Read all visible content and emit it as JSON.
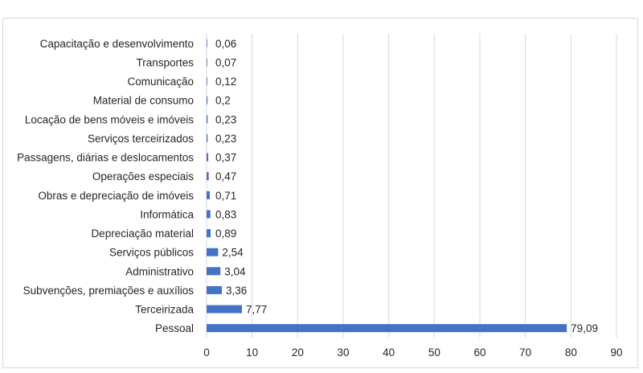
{
  "chart_data": {
    "type": "bar",
    "orientation": "horizontal",
    "categories": [
      "Capacitação e desenvolvimento",
      "Transportes",
      "Comunicação",
      "Material de consumo",
      "Locação de bens móveis e imóveis",
      "Serviços terceirizados",
      "Passagens, diárias e deslocamentos",
      "Operações especiais",
      "Obras e depreciação de imóveis",
      "Informática",
      "Depreciação material",
      "Serviços públicos",
      "Administrativo",
      "Subvenções, premiações e auxílios",
      "Terceirizada",
      "Pessoal"
    ],
    "values": [
      0.06,
      0.07,
      0.12,
      0.2,
      0.23,
      0.23,
      0.37,
      0.47,
      0.71,
      0.83,
      0.89,
      2.54,
      3.04,
      3.36,
      7.77,
      79.09
    ],
    "value_labels": [
      "0,06",
      "0,07",
      "0,12",
      "0,2",
      "0,23",
      "0,23",
      "0,37",
      "0,47",
      "0,71",
      "0,83",
      "0,89",
      "2,54",
      "3,04",
      "3,36",
      "7,77",
      "79,09"
    ],
    "x_ticks": [
      "0",
      "10",
      "20",
      "30",
      "40",
      "50",
      "60",
      "70",
      "80",
      "90"
    ],
    "xlim": [
      0,
      90
    ],
    "grid": "vertical",
    "legend": "none",
    "title": "",
    "xlabel": "",
    "ylabel": "",
    "colors": {
      "bar": "#4472c4",
      "grid": "#d9d9d9",
      "text": "#262626"
    }
  }
}
